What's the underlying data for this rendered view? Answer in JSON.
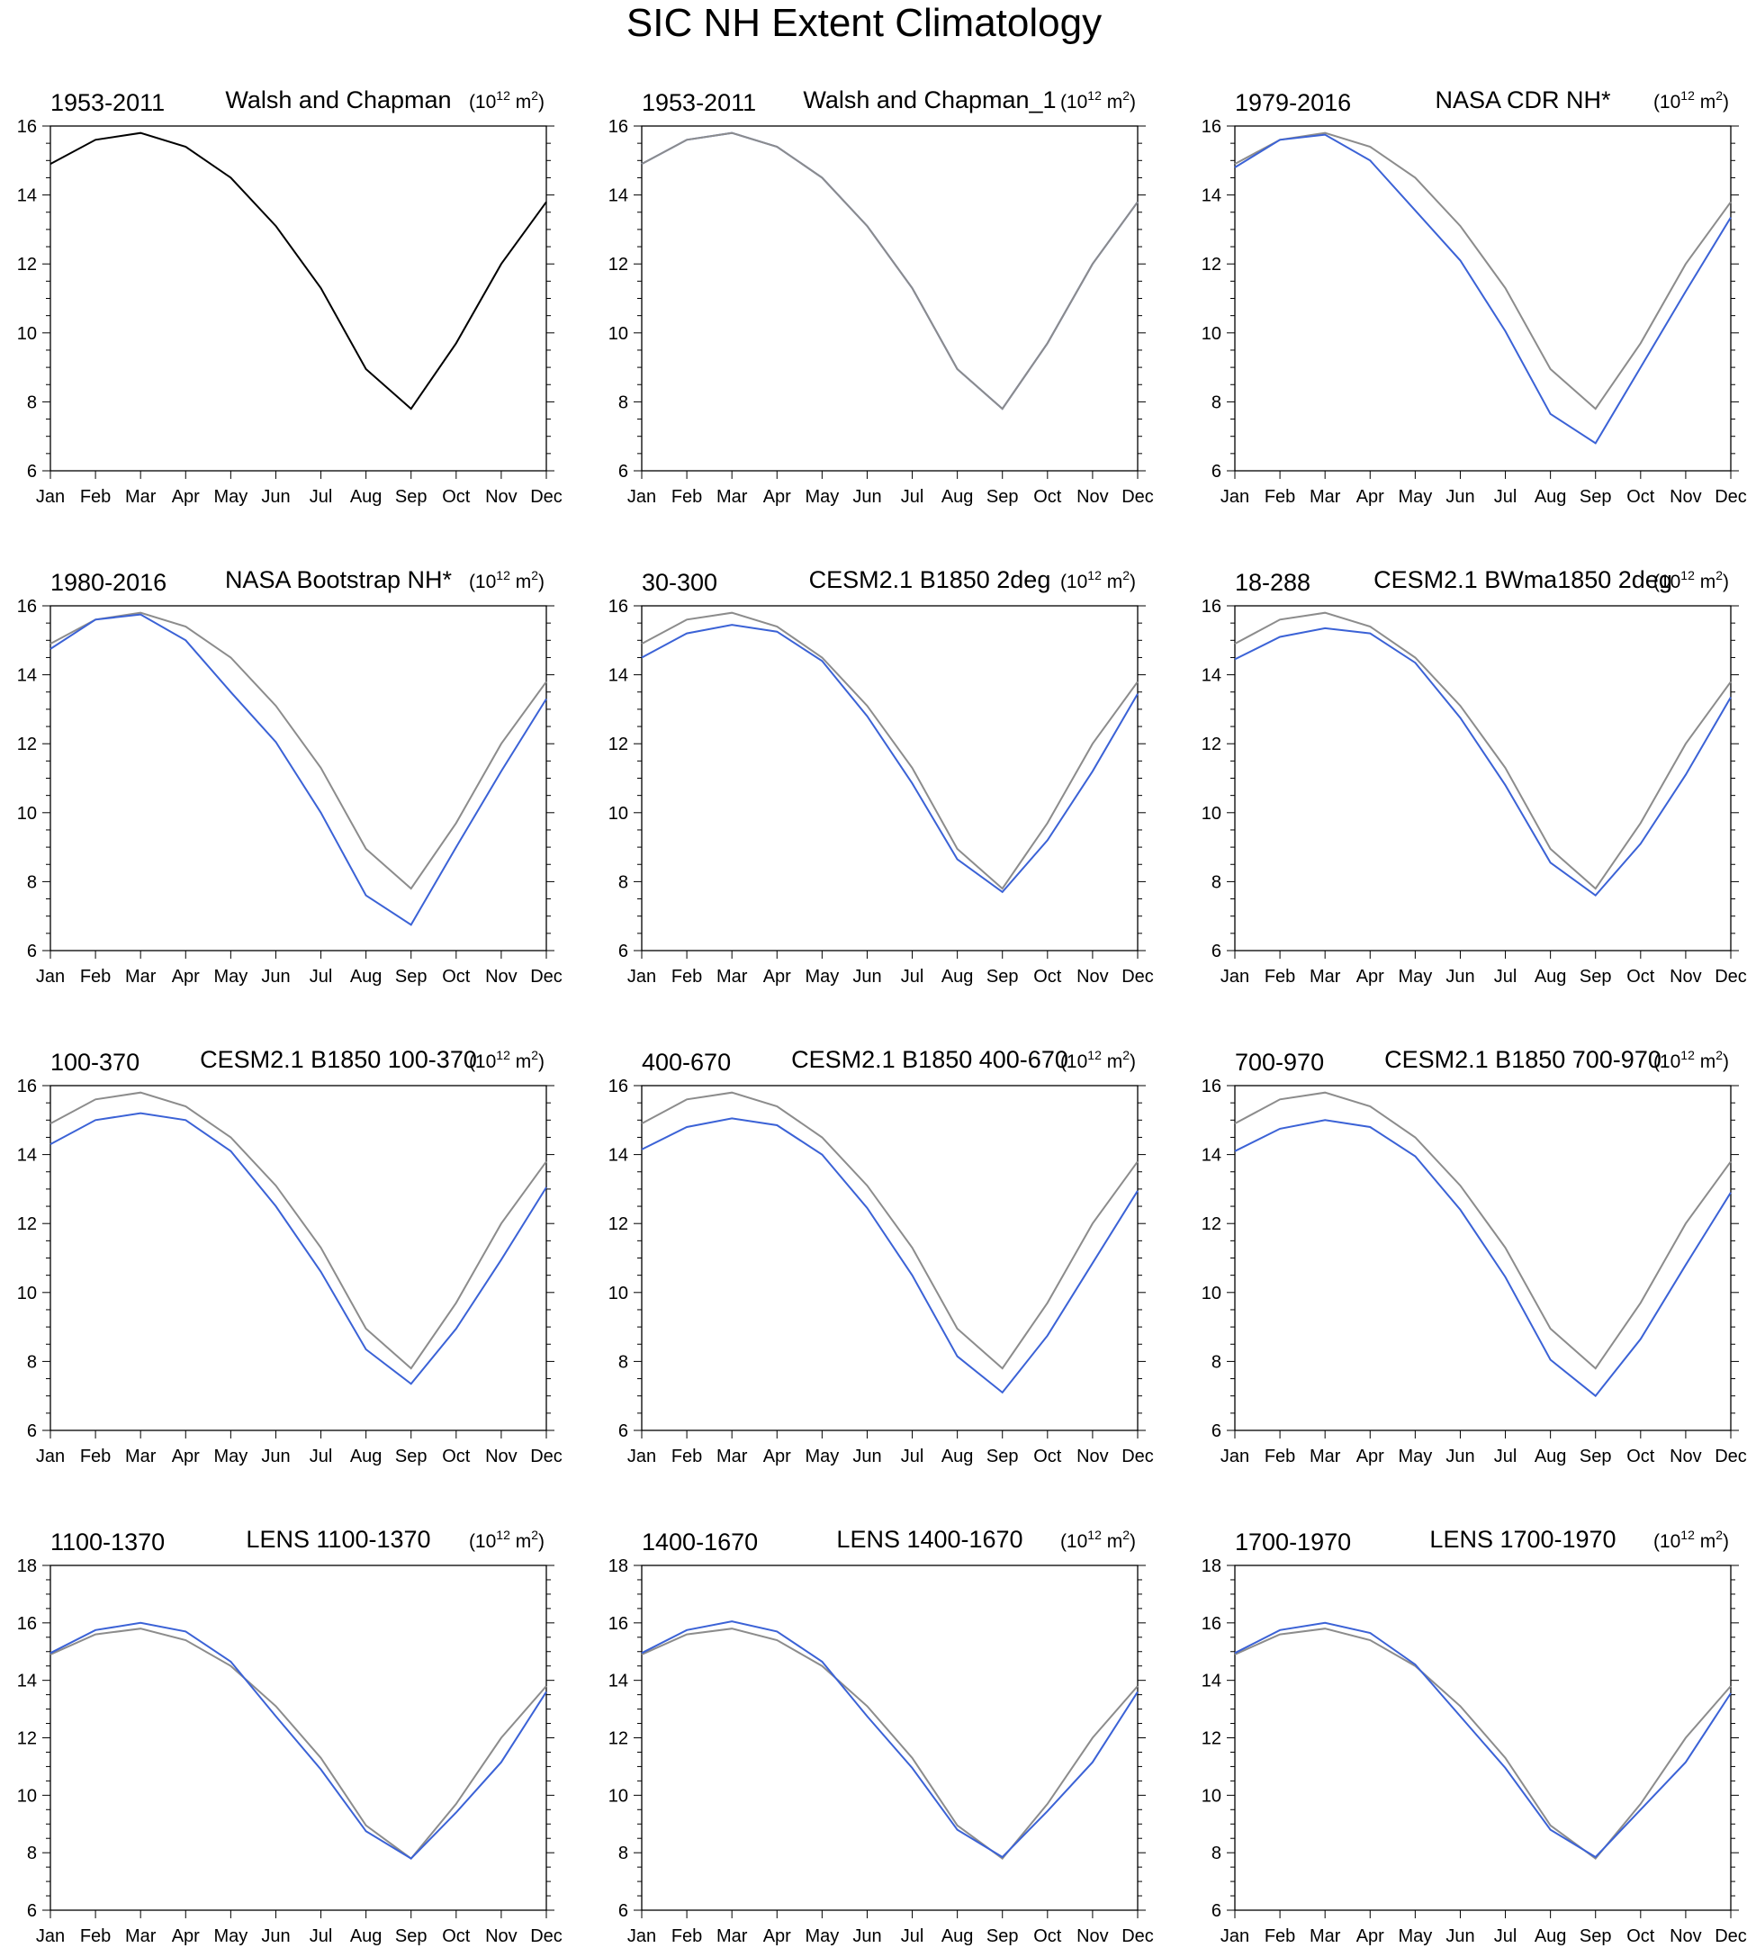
{
  "figure_title": "SIC NH Extent Climatology",
  "units": {
    "base": "10",
    "exp": "12",
    "unit": "m",
    "unit_exp": "2"
  },
  "colors": {
    "reference": "#8c8c8c",
    "model": "#3b62d6",
    "black": "#000000"
  },
  "chart_data": [
    {
      "type": "line",
      "years": "1953-2011",
      "title": "Walsh and Chapman",
      "categories": [
        "Jan",
        "Feb",
        "Mar",
        "Apr",
        "May",
        "Jun",
        "Jul",
        "Aug",
        "Sep",
        "Oct",
        "Nov",
        "Dec"
      ],
      "ylim": [
        6,
        16
      ],
      "yticks": [
        6,
        8,
        10,
        12,
        14,
        16
      ],
      "series": [
        {
          "role": "reference-black",
          "values": [
            14.9,
            15.6,
            15.8,
            15.4,
            14.5,
            13.1,
            11.3,
            8.95,
            7.8,
            9.7,
            12.0,
            13.8
          ]
        }
      ]
    },
    {
      "type": "line",
      "years": "1953-2011",
      "title": "Walsh and Chapman_1",
      "categories": [
        "Jan",
        "Feb",
        "Mar",
        "Apr",
        "May",
        "Jun",
        "Jul",
        "Aug",
        "Sep",
        "Oct",
        "Nov",
        "Dec"
      ],
      "ylim": [
        6,
        16
      ],
      "yticks": [
        6,
        8,
        10,
        12,
        14,
        16
      ],
      "series": [
        {
          "role": "model",
          "values": [
            14.9,
            15.6,
            15.8,
            15.4,
            14.5,
            13.1,
            11.3,
            8.95,
            7.8,
            9.7,
            12.0,
            13.8
          ]
        },
        {
          "role": "reference",
          "values": [
            14.9,
            15.6,
            15.8,
            15.4,
            14.5,
            13.1,
            11.3,
            8.95,
            7.8,
            9.7,
            12.0,
            13.8
          ]
        }
      ]
    },
    {
      "type": "line",
      "years": "1979-2016",
      "title": "NASA CDR NH*",
      "categories": [
        "Jan",
        "Feb",
        "Mar",
        "Apr",
        "May",
        "Jun",
        "Jul",
        "Aug",
        "Sep",
        "Oct",
        "Nov",
        "Dec"
      ],
      "ylim": [
        6,
        16
      ],
      "yticks": [
        6,
        8,
        10,
        12,
        14,
        16
      ],
      "series": [
        {
          "role": "reference",
          "values": [
            14.9,
            15.6,
            15.8,
            15.4,
            14.5,
            13.1,
            11.3,
            8.95,
            7.8,
            9.7,
            12.0,
            13.8
          ]
        },
        {
          "role": "model",
          "values": [
            14.8,
            15.6,
            15.75,
            15.0,
            13.55,
            12.1,
            10.05,
            7.65,
            6.8,
            9.0,
            11.2,
            13.35
          ]
        }
      ]
    },
    {
      "type": "line",
      "years": "1980-2016",
      "title": "NASA Bootstrap NH*",
      "categories": [
        "Jan",
        "Feb",
        "Mar",
        "Apr",
        "May",
        "Jun",
        "Jul",
        "Aug",
        "Sep",
        "Oct",
        "Nov",
        "Dec"
      ],
      "ylim": [
        6,
        16
      ],
      "yticks": [
        6,
        8,
        10,
        12,
        14,
        16
      ],
      "series": [
        {
          "role": "reference",
          "values": [
            14.9,
            15.6,
            15.8,
            15.4,
            14.5,
            13.1,
            11.3,
            8.95,
            7.8,
            9.7,
            12.0,
            13.8
          ]
        },
        {
          "role": "model",
          "values": [
            14.75,
            15.6,
            15.75,
            15.0,
            13.5,
            12.05,
            10.0,
            7.6,
            6.75,
            9.0,
            11.2,
            13.3
          ]
        }
      ]
    },
    {
      "type": "line",
      "years": "30-300",
      "title": "CESM2.1 B1850 2deg",
      "categories": [
        "Jan",
        "Feb",
        "Mar",
        "Apr",
        "May",
        "Jun",
        "Jul",
        "Aug",
        "Sep",
        "Oct",
        "Nov",
        "Dec"
      ],
      "ylim": [
        6,
        16
      ],
      "yticks": [
        6,
        8,
        10,
        12,
        14,
        16
      ],
      "series": [
        {
          "role": "reference",
          "values": [
            14.9,
            15.6,
            15.8,
            15.4,
            14.5,
            13.1,
            11.3,
            8.95,
            7.8,
            9.7,
            12.0,
            13.8
          ]
        },
        {
          "role": "model",
          "values": [
            14.5,
            15.2,
            15.45,
            15.25,
            14.4,
            12.8,
            10.85,
            8.65,
            7.7,
            9.2,
            11.2,
            13.45
          ]
        }
      ]
    },
    {
      "type": "line",
      "years": "18-288",
      "title": "CESM2.1 BWma1850 2deg",
      "categories": [
        "Jan",
        "Feb",
        "Mar",
        "Apr",
        "May",
        "Jun",
        "Jul",
        "Aug",
        "Sep",
        "Oct",
        "Nov",
        "Dec"
      ],
      "ylim": [
        6,
        16
      ],
      "yticks": [
        6,
        8,
        10,
        12,
        14,
        16
      ],
      "series": [
        {
          "role": "reference",
          "values": [
            14.9,
            15.6,
            15.8,
            15.4,
            14.5,
            13.1,
            11.3,
            8.95,
            7.8,
            9.7,
            12.0,
            13.8
          ]
        },
        {
          "role": "model",
          "values": [
            14.45,
            15.1,
            15.35,
            15.2,
            14.35,
            12.75,
            10.8,
            8.55,
            7.6,
            9.1,
            11.1,
            13.35
          ]
        }
      ]
    },
    {
      "type": "line",
      "years": "100-370",
      "title": "CESM2.1 B1850 100-370",
      "categories": [
        "Jan",
        "Feb",
        "Mar",
        "Apr",
        "May",
        "Jun",
        "Jul",
        "Aug",
        "Sep",
        "Oct",
        "Nov",
        "Dec"
      ],
      "ylim": [
        6,
        16
      ],
      "yticks": [
        6,
        8,
        10,
        12,
        14,
        16
      ],
      "series": [
        {
          "role": "reference",
          "values": [
            14.9,
            15.6,
            15.8,
            15.4,
            14.5,
            13.1,
            11.3,
            8.95,
            7.8,
            9.7,
            12.0,
            13.8
          ]
        },
        {
          "role": "model",
          "values": [
            14.3,
            15.0,
            15.2,
            15.0,
            14.1,
            12.5,
            10.6,
            8.35,
            7.35,
            8.95,
            10.95,
            13.05
          ]
        }
      ]
    },
    {
      "type": "line",
      "years": "400-670",
      "title": "CESM2.1 B1850 400-670",
      "categories": [
        "Jan",
        "Feb",
        "Mar",
        "Apr",
        "May",
        "Jun",
        "Jul",
        "Aug",
        "Sep",
        "Oct",
        "Nov",
        "Dec"
      ],
      "ylim": [
        6,
        16
      ],
      "yticks": [
        6,
        8,
        10,
        12,
        14,
        16
      ],
      "series": [
        {
          "role": "reference",
          "values": [
            14.9,
            15.6,
            15.8,
            15.4,
            14.5,
            13.1,
            11.3,
            8.95,
            7.8,
            9.7,
            12.0,
            13.8
          ]
        },
        {
          "role": "model",
          "values": [
            14.15,
            14.8,
            15.05,
            14.85,
            14.0,
            12.45,
            10.5,
            8.15,
            7.1,
            8.75,
            10.85,
            12.95
          ]
        }
      ]
    },
    {
      "type": "line",
      "years": "700-970",
      "title": "CESM2.1 B1850 700-970",
      "categories": [
        "Jan",
        "Feb",
        "Mar",
        "Apr",
        "May",
        "Jun",
        "Jul",
        "Aug",
        "Sep",
        "Oct",
        "Nov",
        "Dec"
      ],
      "ylim": [
        6,
        16
      ],
      "yticks": [
        6,
        8,
        10,
        12,
        14,
        16
      ],
      "series": [
        {
          "role": "reference",
          "values": [
            14.9,
            15.6,
            15.8,
            15.4,
            14.5,
            13.1,
            11.3,
            8.95,
            7.8,
            9.7,
            12.0,
            13.8
          ]
        },
        {
          "role": "model",
          "values": [
            14.1,
            14.75,
            15.0,
            14.8,
            13.95,
            12.4,
            10.45,
            8.05,
            7.0,
            8.65,
            10.8,
            12.9
          ]
        }
      ]
    },
    {
      "type": "line",
      "years": "1100-1370",
      "title": "LENS 1100-1370",
      "categories": [
        "Jan",
        "Feb",
        "Mar",
        "Apr",
        "May",
        "Jun",
        "Jul",
        "Aug",
        "Sep",
        "Oct",
        "Nov",
        "Dec"
      ],
      "ylim": [
        6,
        18
      ],
      "yticks": [
        6,
        8,
        10,
        12,
        14,
        16,
        18
      ],
      "series": [
        {
          "role": "reference",
          "values": [
            14.9,
            15.6,
            15.8,
            15.4,
            14.5,
            13.1,
            11.3,
            8.95,
            7.8,
            9.7,
            12.0,
            13.8
          ]
        },
        {
          "role": "model",
          "values": [
            14.95,
            15.75,
            16.0,
            15.7,
            14.65,
            12.75,
            10.9,
            8.75,
            7.8,
            9.4,
            11.15,
            13.6
          ]
        }
      ]
    },
    {
      "type": "line",
      "years": "1400-1670",
      "title": "LENS 1400-1670",
      "categories": [
        "Jan",
        "Feb",
        "Mar",
        "Apr",
        "May",
        "Jun",
        "Jul",
        "Aug",
        "Sep",
        "Oct",
        "Nov",
        "Dec"
      ],
      "ylim": [
        6,
        18
      ],
      "yticks": [
        6,
        8,
        10,
        12,
        14,
        16,
        18
      ],
      "series": [
        {
          "role": "reference",
          "values": [
            14.9,
            15.6,
            15.8,
            15.4,
            14.5,
            13.1,
            11.3,
            8.95,
            7.8,
            9.7,
            12.0,
            13.8
          ]
        },
        {
          "role": "model",
          "values": [
            14.95,
            15.75,
            16.05,
            15.7,
            14.65,
            12.75,
            10.95,
            8.8,
            7.85,
            9.45,
            11.15,
            13.6
          ]
        }
      ]
    },
    {
      "type": "line",
      "years": "1700-1970",
      "title": "LENS 1700-1970",
      "categories": [
        "Jan",
        "Feb",
        "Mar",
        "Apr",
        "May",
        "Jun",
        "Jul",
        "Aug",
        "Sep",
        "Oct",
        "Nov",
        "Dec"
      ],
      "ylim": [
        6,
        18
      ],
      "yticks": [
        6,
        8,
        10,
        12,
        14,
        16,
        18
      ],
      "series": [
        {
          "role": "reference",
          "values": [
            14.9,
            15.6,
            15.8,
            15.4,
            14.5,
            13.1,
            11.3,
            8.95,
            7.8,
            9.7,
            12.0,
            13.8
          ]
        },
        {
          "role": "model",
          "values": [
            14.95,
            15.75,
            16.0,
            15.65,
            14.55,
            12.75,
            10.95,
            8.8,
            7.85,
            9.5,
            11.15,
            13.55
          ]
        }
      ]
    }
  ]
}
